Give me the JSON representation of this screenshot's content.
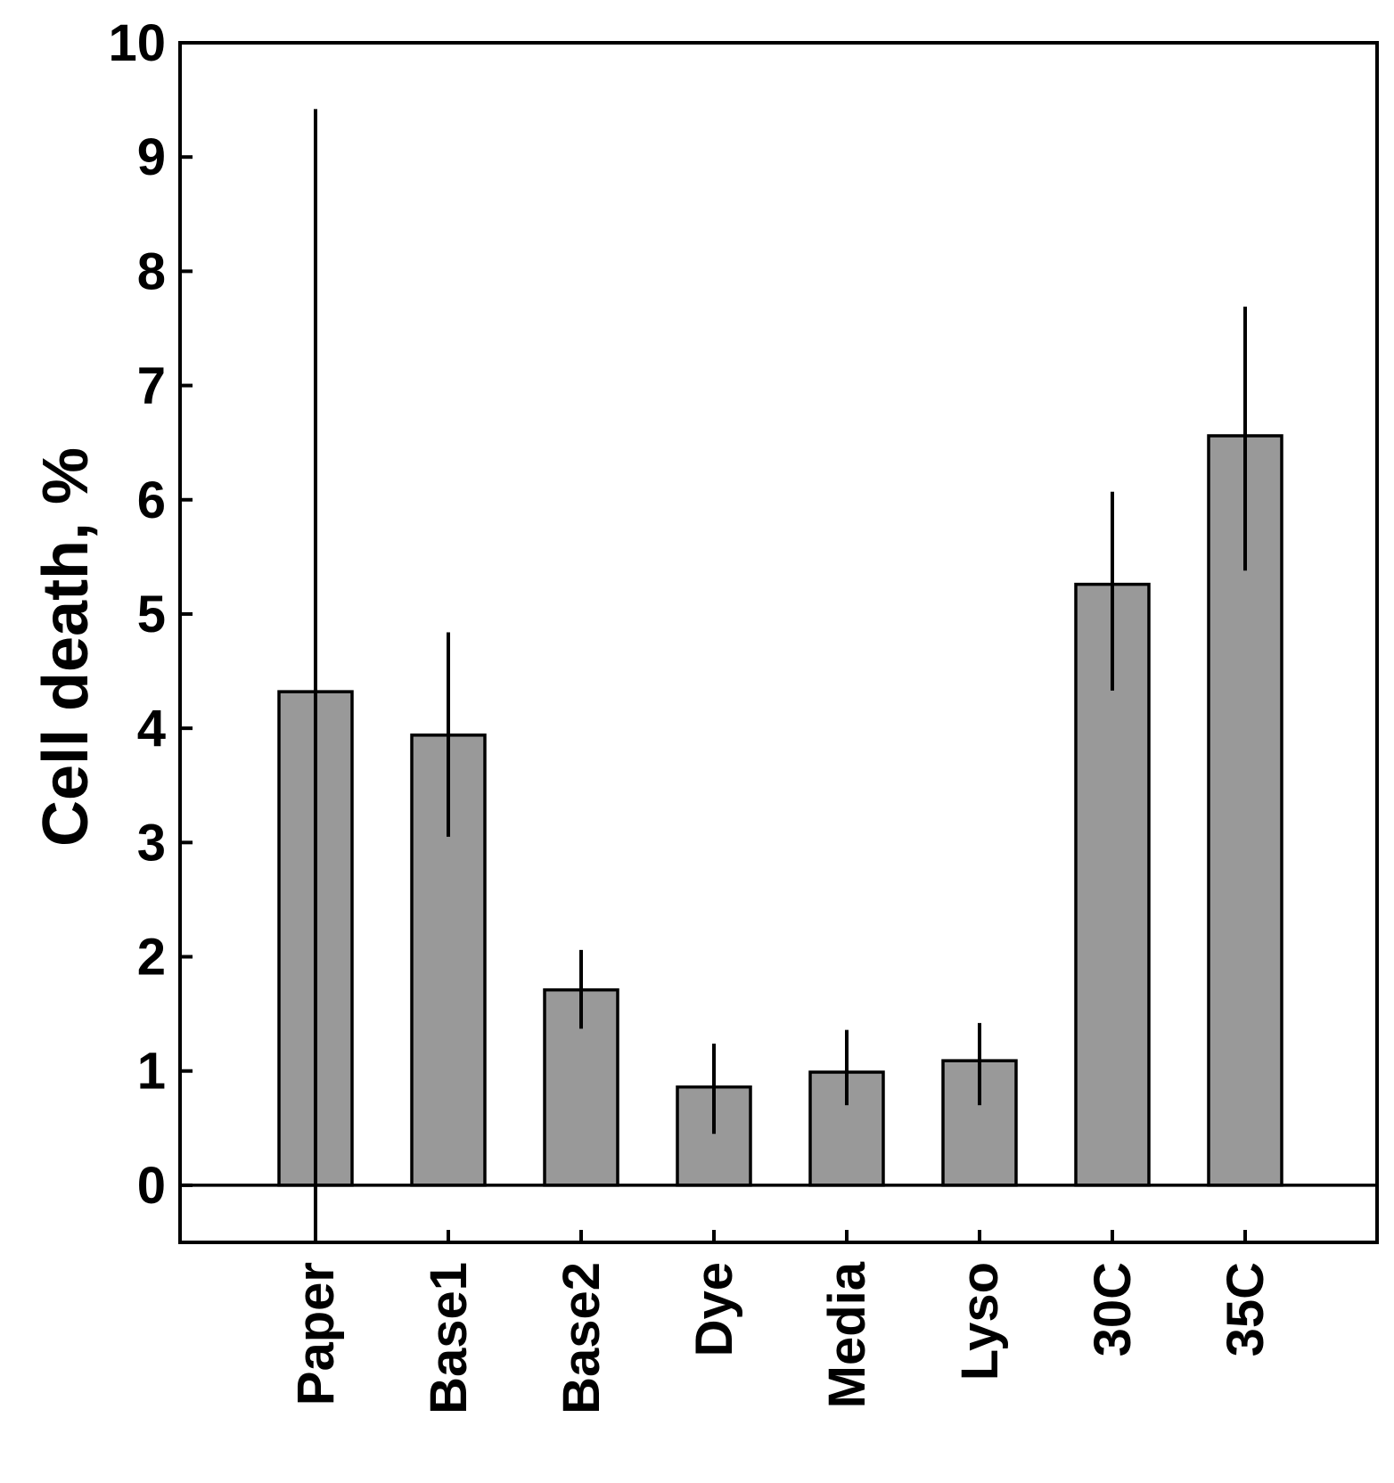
{
  "chart_data": {
    "type": "bar",
    "title": "",
    "xlabel": "",
    "ylabel": "Cell death, %",
    "categories": [
      "Paper",
      "Base1",
      "Base2",
      "Dye",
      "Media",
      "Lyso",
      "30C",
      "35C"
    ],
    "values": [
      4.32,
      3.94,
      1.71,
      0.86,
      0.99,
      1.09,
      5.26,
      6.56
    ],
    "error_low": [
      -0.5,
      3.05,
      1.37,
      0.45,
      0.7,
      0.7,
      4.33,
      5.38
    ],
    "error_high": [
      9.42,
      4.84,
      2.06,
      1.24,
      1.36,
      1.42,
      6.07,
      7.69
    ],
    "ylim": [
      -0.5,
      10
    ],
    "yticks": [
      0,
      1,
      2,
      3,
      4,
      5,
      6,
      7,
      8,
      9,
      10
    ],
    "bar_color": "#999999",
    "grid": false,
    "zero_line": true
  }
}
